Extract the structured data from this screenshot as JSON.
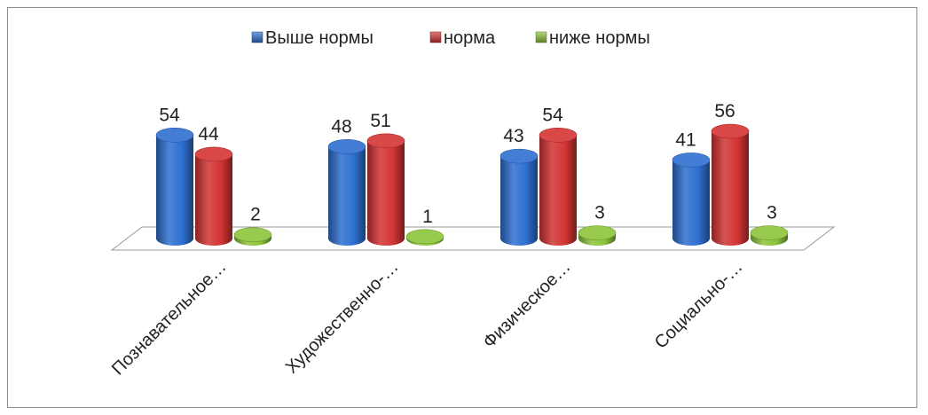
{
  "chart_data": {
    "type": "bar",
    "title": "",
    "xlabel": "",
    "ylabel": "",
    "ylim": [
      0,
      60
    ],
    "grid": false,
    "legend_position": "top-center",
    "categories": [
      "Познавательное…",
      "Художественно-…",
      "Физическое…",
      "Социально-…"
    ],
    "series": [
      {
        "name": "Выше нормы",
        "values": [
          54,
          48,
          43,
          41
        ],
        "color": "#2e6fd0"
      },
      {
        "name": "норма",
        "values": [
          44,
          51,
          54,
          56
        ],
        "color": "#d23433"
      },
      {
        "name": "ниже нормы",
        "values": [
          2,
          1,
          3,
          3
        ],
        "color": "#8dc43a"
      }
    ]
  }
}
